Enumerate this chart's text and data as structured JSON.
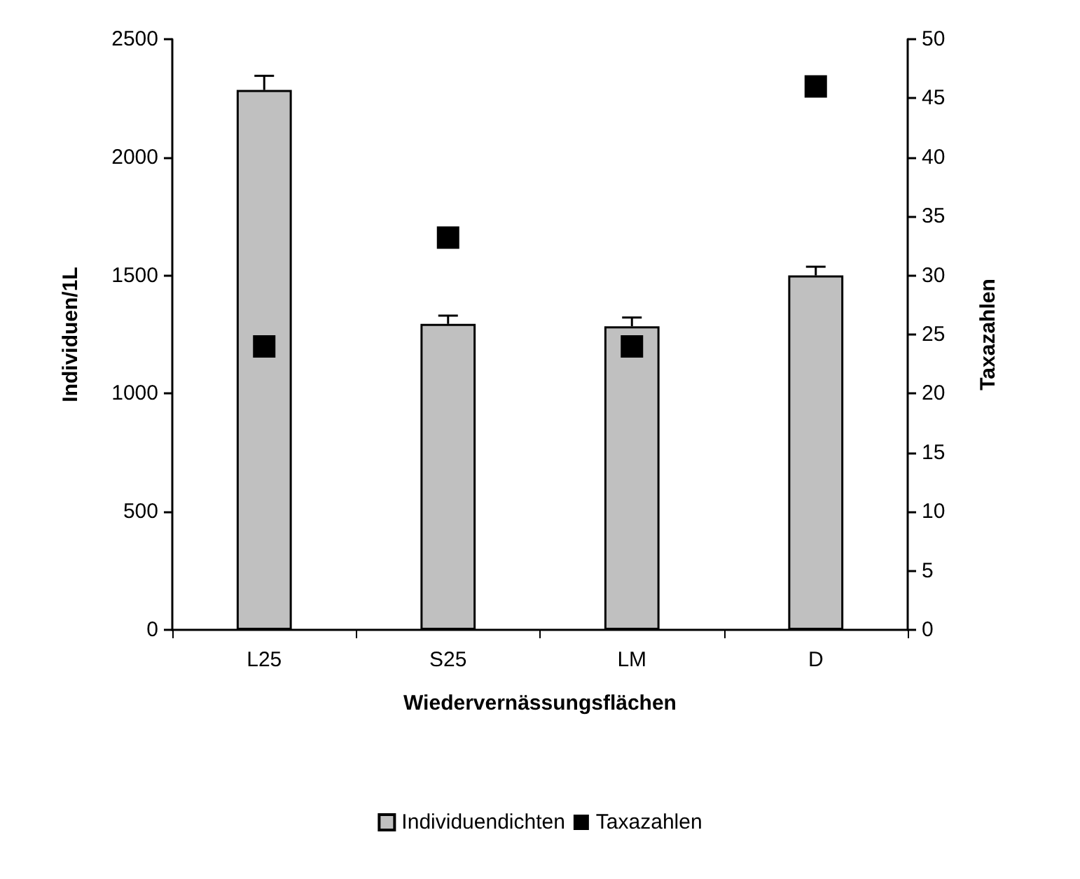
{
  "chart_data": {
    "type": "bar",
    "xlabel": "Wiedervernässungsflächen",
    "ylabel": "Individuen/1L",
    "y2label": "Taxazahlen",
    "categories": [
      "L25",
      "S25",
      "LM",
      "D"
    ],
    "series": [
      {
        "name": "Individuendichten",
        "color": "#c0c0c0",
        "values": [
          2285,
          1295,
          1285,
          1500
        ],
        "errors": [
          60,
          35,
          37,
          37
        ]
      },
      {
        "name": "Taxazahlen",
        "type": "scatter",
        "axis": "y2",
        "color": "#000000",
        "values": [
          24,
          33.2,
          24,
          46
        ]
      }
    ],
    "ylim": [
      0,
      2500
    ],
    "yticks": [
      0,
      500,
      1000,
      1500,
      2000,
      2500
    ],
    "y2lim": [
      0,
      50
    ],
    "y2ticks": [
      0,
      5,
      10,
      15,
      20,
      25,
      30,
      35,
      40,
      45,
      50
    ],
    "legend": "bottom",
    "marker": "square",
    "grid": false
  }
}
